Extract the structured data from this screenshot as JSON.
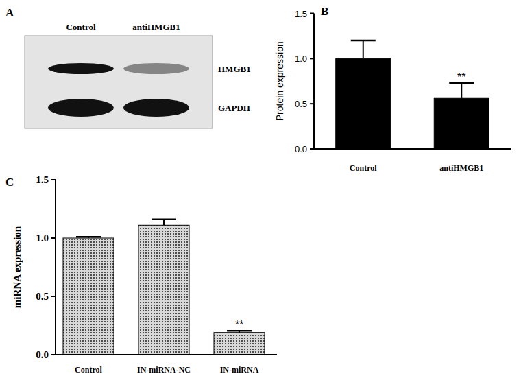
{
  "blot": {
    "panel": "A",
    "lanes": [
      "Control",
      "antiHMGB1"
    ],
    "bands": [
      {
        "label": "HMGB1",
        "intensity": [
          1,
          0.45
        ]
      },
      {
        "label": "GAPDH",
        "intensity": [
          1,
          1
        ]
      }
    ]
  },
  "chart_data": [
    {
      "type": "bar",
      "title": "B",
      "y_label": "Protein expression",
      "categories": [
        "Control",
        "antiHMGB1"
      ],
      "values": [
        1.0,
        0.56
      ],
      "errors": [
        0.2,
        0.17
      ],
      "annotations": [
        null,
        "**"
      ],
      "color": "#000000",
      "ylim": [
        0,
        1.5
      ],
      "yticks": [
        {
          "value": 0,
          "label": "0.0"
        },
        {
          "value": 0.5,
          "label": "0.5"
        },
        {
          "value": 1,
          "label": "1.0"
        },
        {
          "value": 1.5,
          "label": "1.5"
        }
      ]
    },
    {
      "type": "bar",
      "title": "C",
      "y_label": "miRNA expression",
      "categories": [
        "Control",
        "IN-miRNA-NC",
        "IN-miRNA"
      ],
      "values": [
        1.0,
        1.11,
        0.19
      ],
      "errors": [
        0.01,
        0.05,
        0.015
      ],
      "annotations": [
        null,
        null,
        "**"
      ],
      "color": "#4d4d4d",
      "ylim": [
        0,
        1.5
      ],
      "yticks": [
        {
          "value": 0,
          "label": "0.0"
        },
        {
          "value": 0.5,
          "label": "0.5"
        },
        {
          "value": 1,
          "label": "1.0"
        },
        {
          "value": 1.5,
          "label": "1.5"
        }
      ]
    }
  ]
}
